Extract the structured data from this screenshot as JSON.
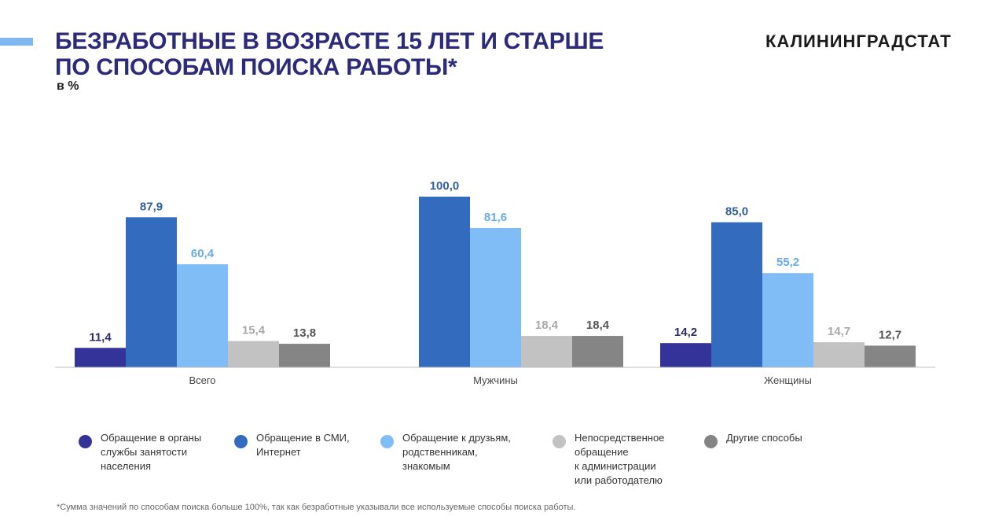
{
  "header": {
    "title_line1": "БЕЗРАБОТНЫЕ В ВОЗРАСТЕ 15 ЛЕТ И СТАРШЕ",
    "title_line2": "ПО СПОСОБАМ ПОИСКА РАБОТЫ*",
    "unit": "в %",
    "brand": "КАЛИНИНГРАДСТАТ"
  },
  "footnote": "*Сумма значений по способам поиска больше 100%, так как безработные указывали все используемые способы поиска работы.",
  "chart_data": {
    "type": "bar",
    "categories": [
      "Всего",
      "Мужчины",
      "Женщины"
    ],
    "series": [
      {
        "name": "Обращение в органы\nслужбы занятости\nнаселения",
        "values": [
          11.4,
          null,
          14.2
        ],
        "color": "#333399",
        "label_color": "#2b2b6a"
      },
      {
        "name": "Обращение в СМИ,\nИнтернет",
        "values": [
          87.9,
          100.0,
          85.0
        ],
        "color": "#336bbf",
        "label_color": "#2f5f9f"
      },
      {
        "name": "Обращение к друзьям,\nродственникам,\nзнакомым",
        "values": [
          60.4,
          81.6,
          55.2
        ],
        "color": "#80bcf5",
        "label_color": "#6aaae6"
      },
      {
        "name": "Непосредственное\nобращение\nк администрации\nили работодателю",
        "values": [
          15.4,
          18.4,
          14.7
        ],
        "color": "#c2c2c2",
        "label_color": "#a8a8a8"
      },
      {
        "name": "Другие способы",
        "values": [
          13.8,
          18.4,
          12.7
        ],
        "color": "#858585",
        "label_color": "#555555"
      }
    ],
    "ylim": [
      0,
      100
    ],
    "value_format": "comma-decimal",
    "grid": false,
    "legend_position": "bottom"
  }
}
